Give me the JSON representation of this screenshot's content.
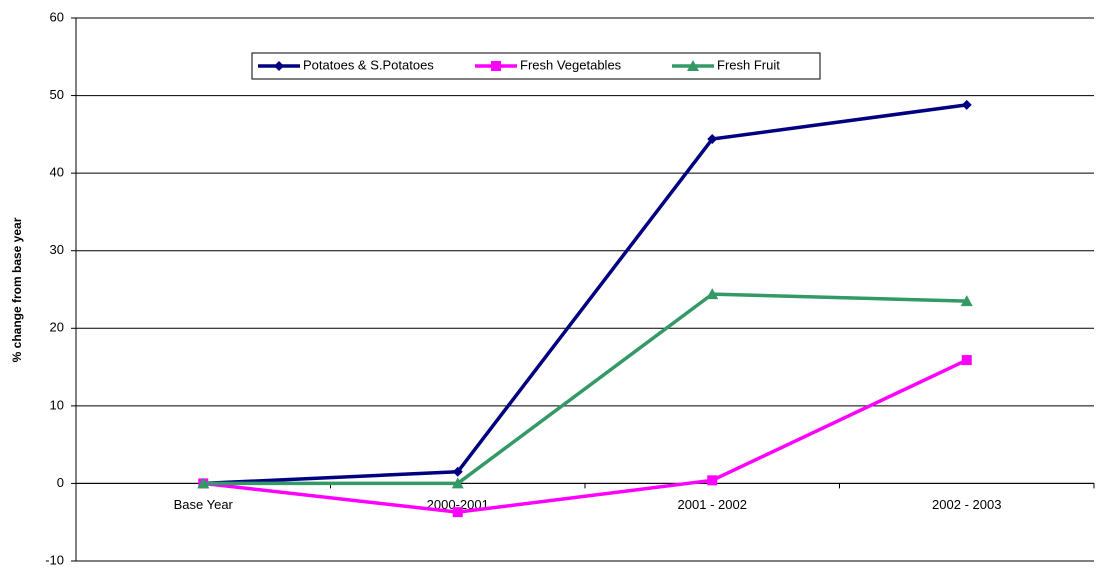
{
  "chart_data": {
    "type": "line",
    "y_label": "% change from base year",
    "categories": [
      "Base Year",
      "2000-2001",
      "2001 - 2002",
      "2002 - 2003"
    ],
    "series": [
      {
        "name": "Potatoes & S.Potatoes",
        "color": "#000080",
        "marker": "diamond",
        "values": [
          0,
          1.5,
          44.4,
          48.8
        ]
      },
      {
        "name": "Fresh Vegetables",
        "color": "#ff00ff",
        "marker": "square",
        "values": [
          0,
          -3.7,
          0.4,
          15.9
        ]
      },
      {
        "name": "Fresh Fruit",
        "color": "#339966",
        "marker": "triangle",
        "values": [
          0,
          0,
          24.4,
          23.5
        ]
      }
    ],
    "ylim": [
      -10,
      60
    ],
    "yticks": [
      -10,
      0,
      10,
      20,
      30,
      40,
      50,
      60
    ],
    "grid": true,
    "legend": "top"
  }
}
